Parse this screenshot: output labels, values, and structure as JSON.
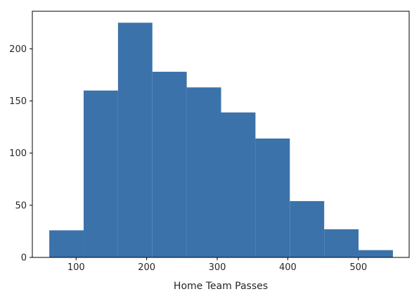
{
  "chart_data": {
    "type": "bar",
    "xlabel": "Home Team Passes",
    "ylabel": "",
    "title": "",
    "xlim": [
      38,
      572
    ],
    "ylim": [
      0,
      236
    ],
    "x_ticks": [
      100,
      200,
      300,
      400,
      500
    ],
    "y_ticks": [
      0,
      50,
      100,
      150,
      200
    ],
    "bins": [
      {
        "start": 62,
        "end": 110.7,
        "count": 26
      },
      {
        "start": 110.7,
        "end": 159.4,
        "count": 160
      },
      {
        "start": 159.4,
        "end": 208.1,
        "count": 225
      },
      {
        "start": 208.1,
        "end": 256.8,
        "count": 178
      },
      {
        "start": 256.8,
        "end": 305.5,
        "count": 163
      },
      {
        "start": 305.5,
        "end": 354.2,
        "count": 139
      },
      {
        "start": 354.2,
        "end": 402.9,
        "count": 114
      },
      {
        "start": 402.9,
        "end": 451.6,
        "count": 54
      },
      {
        "start": 451.6,
        "end": 500.3,
        "count": 27
      },
      {
        "start": 500.3,
        "end": 549,
        "count": 7
      }
    ],
    "bar_color": "#3c72aa",
    "grid": false,
    "legend": "none"
  }
}
